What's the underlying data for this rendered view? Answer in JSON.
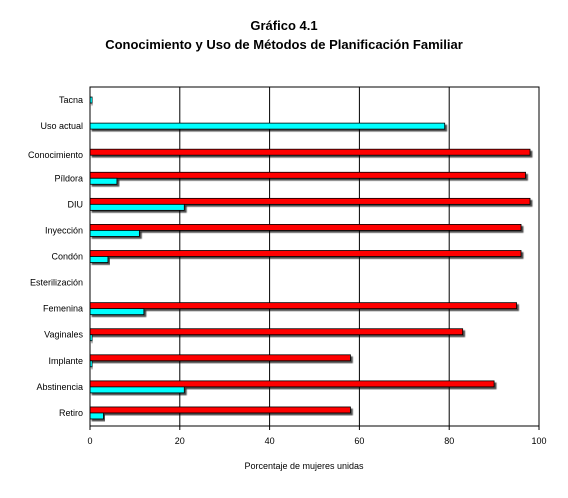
{
  "chart_data": {
    "type": "bar",
    "orientation": "horizontal",
    "title": "Gráfico 4.1",
    "subtitle": "Conocimiento y Uso de Métodos de Planificación Familiar",
    "xlabel": "Porcentaje de mujeres unidas",
    "xlim": [
      0,
      100
    ],
    "xticks": [
      0,
      20,
      40,
      60,
      80,
      100
    ],
    "grid": true,
    "legend": "none",
    "colors": {
      "conocimiento": "#ff0000",
      "uso_actual": "#00ffff"
    },
    "categories": [
      "Tacna",
      "Uso actual",
      "Conocimiento",
      "Píldora",
      "DIU",
      "Inyección",
      "Condón",
      "Esterilización",
      "Femenina",
      "Vaginales",
      "Implante",
      "Abstinencia",
      "Retiro"
    ],
    "series": [
      {
        "key": "conocimiento",
        "values": [
          null,
          null,
          98,
          97,
          98,
          96,
          96,
          null,
          95,
          83,
          58,
          90,
          58
        ]
      },
      {
        "key": "uso_actual",
        "values": [
          0.5,
          79,
          null,
          6,
          21,
          11,
          4,
          null,
          12,
          0.5,
          0.5,
          21,
          3
        ]
      }
    ]
  }
}
